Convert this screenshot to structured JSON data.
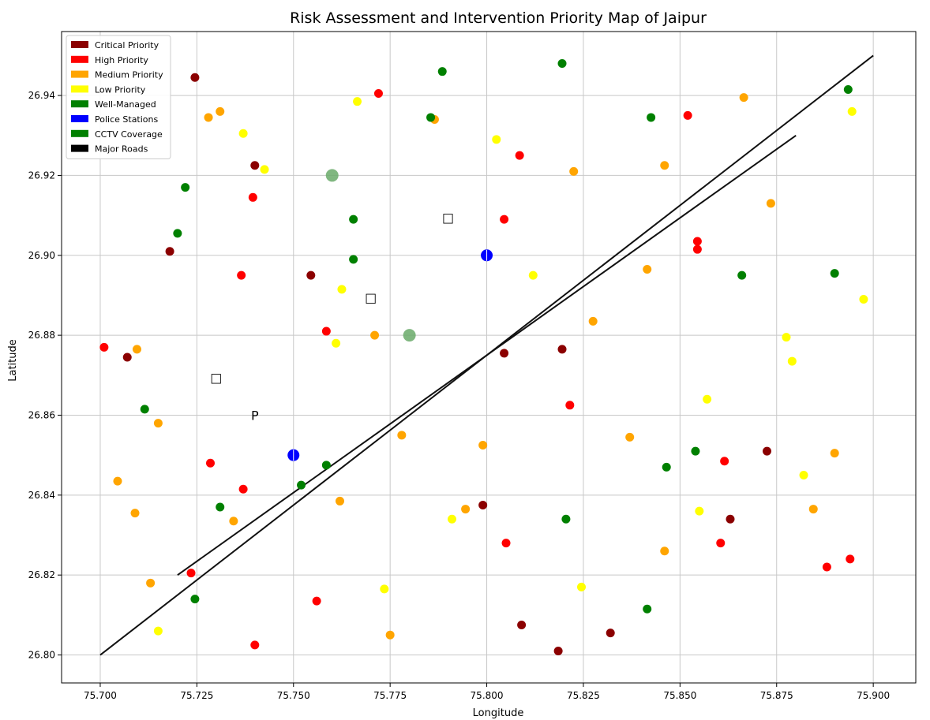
{
  "chart_data": {
    "type": "scatter",
    "title": "Risk Assessment and Intervention Priority Map of Jaipur",
    "xlabel": "Longitude",
    "ylabel": "Latitude",
    "xlim": [
      75.69,
      75.911
    ],
    "ylim": [
      26.793,
      26.956
    ],
    "xticks": [
      75.7,
      75.725,
      75.75,
      75.775,
      75.8,
      75.825,
      75.85,
      75.875,
      75.9
    ],
    "xtick_labels": [
      "75.700",
      "75.725",
      "75.750",
      "75.775",
      "75.800",
      "75.825",
      "75.850",
      "75.875",
      "75.900"
    ],
    "yticks": [
      26.8,
      26.82,
      26.84,
      26.86,
      26.88,
      26.9,
      26.92,
      26.94
    ],
    "ytick_labels": [
      "26.80",
      "26.82",
      "26.84",
      "26.86",
      "26.88",
      "26.90",
      "26.92",
      "26.94"
    ],
    "grid": true,
    "legend_position": "upper-left",
    "legend": [
      {
        "label": "Critical Priority",
        "color": "#8b0000"
      },
      {
        "label": "High Priority",
        "color": "#ff0000"
      },
      {
        "label": "Medium Priority",
        "color": "#ffa500"
      },
      {
        "label": "Low Priority",
        "color": "#ffff00"
      },
      {
        "label": "Well-Managed",
        "color": "#008000"
      },
      {
        "label": "Police Stations",
        "color": "#0000ff"
      },
      {
        "label": "CCTV Coverage",
        "color": "#008000"
      },
      {
        "label": "Major Roads",
        "color": "#000000"
      }
    ],
    "series": [
      {
        "category": "critical",
        "color": "#8b0000",
        "points": [
          [
            75.7245,
            26.9445
          ],
          [
            75.74,
            26.9225
          ],
          [
            75.718,
            26.901
          ],
          [
            75.7545,
            26.895
          ],
          [
            75.707,
            26.8745
          ],
          [
            75.8045,
            26.8755
          ],
          [
            75.8195,
            26.8765
          ],
          [
            75.8725,
            26.851
          ],
          [
            75.799,
            26.8375
          ],
          [
            75.863,
            26.834
          ],
          [
            75.809,
            26.8075
          ],
          [
            75.832,
            26.8055
          ],
          [
            75.8185,
            26.801
          ]
        ]
      },
      {
        "category": "high",
        "color": "#ff0000",
        "points": [
          [
            75.772,
            26.9405
          ],
          [
            75.852,
            26.935
          ],
          [
            75.8085,
            26.925
          ],
          [
            75.7395,
            26.9145
          ],
          [
            75.8045,
            26.909
          ],
          [
            75.8545,
            26.9035
          ],
          [
            75.8545,
            26.9015
          ],
          [
            75.7365,
            26.895
          ],
          [
            75.701,
            26.877
          ],
          [
            75.7585,
            26.881
          ],
          [
            75.8215,
            26.8625
          ],
          [
            75.7285,
            26.848
          ],
          [
            75.737,
            26.8415
          ],
          [
            75.8615,
            26.8485
          ],
          [
            75.805,
            26.828
          ],
          [
            75.8605,
            26.828
          ],
          [
            75.7235,
            26.8205
          ],
          [
            75.888,
            26.822
          ],
          [
            75.894,
            26.824
          ],
          [
            75.756,
            26.8135
          ],
          [
            75.74,
            26.8025
          ]
        ]
      },
      {
        "category": "medium",
        "color": "#ffa500",
        "points": [
          [
            75.8665,
            26.9395
          ],
          [
            75.731,
            26.936
          ],
          [
            75.728,
            26.9345
          ],
          [
            75.7865,
            26.934
          ],
          [
            75.8225,
            26.921
          ],
          [
            75.846,
            26.9225
          ],
          [
            75.8735,
            26.913
          ],
          [
            75.8415,
            26.8965
          ],
          [
            75.8275,
            26.8835
          ],
          [
            75.771,
            26.88
          ],
          [
            75.7095,
            26.8765
          ],
          [
            75.715,
            26.858
          ],
          [
            75.778,
            26.855
          ],
          [
            75.837,
            26.8545
          ],
          [
            75.799,
            26.8525
          ],
          [
            75.89,
            26.8505
          ],
          [
            75.7045,
            26.8435
          ],
          [
            75.762,
            26.8385
          ],
          [
            75.7945,
            26.8365
          ],
          [
            75.7345,
            26.8335
          ],
          [
            75.709,
            26.8355
          ],
          [
            75.8845,
            26.8365
          ],
          [
            75.846,
            26.826
          ],
          [
            75.713,
            26.818
          ],
          [
            75.775,
            26.805
          ]
        ]
      },
      {
        "category": "low",
        "color": "#ffff00",
        "points": [
          [
            75.7665,
            26.9385
          ],
          [
            75.8945,
            26.936
          ],
          [
            75.737,
            26.9305
          ],
          [
            75.8025,
            26.929
          ],
          [
            75.7425,
            26.9215
          ],
          [
            75.7625,
            26.8915
          ],
          [
            75.812,
            26.895
          ],
          [
            75.8975,
            26.889
          ],
          [
            75.761,
            26.878
          ],
          [
            75.8775,
            26.8795
          ],
          [
            75.879,
            26.8735
          ],
          [
            75.857,
            26.864
          ],
          [
            75.882,
            26.845
          ],
          [
            75.855,
            26.836
          ],
          [
            75.791,
            26.834
          ],
          [
            75.7735,
            26.8165
          ],
          [
            75.8245,
            26.817
          ],
          [
            75.715,
            26.806
          ]
        ]
      },
      {
        "category": "well-managed",
        "color": "#008000",
        "points": [
          [
            75.7885,
            26.946
          ],
          [
            75.8195,
            26.948
          ],
          [
            75.8935,
            26.9415
          ],
          [
            75.7855,
            26.9345
          ],
          [
            75.8425,
            26.9345
          ],
          [
            75.722,
            26.917
          ],
          [
            75.72,
            26.9055
          ],
          [
            75.7655,
            26.909
          ],
          [
            75.7655,
            26.899
          ],
          [
            75.866,
            26.895
          ],
          [
            75.89,
            26.8955
          ],
          [
            75.7115,
            26.8615
          ],
          [
            75.854,
            26.851
          ],
          [
            75.8465,
            26.847
          ],
          [
            75.7585,
            26.8475
          ],
          [
            75.752,
            26.8425
          ],
          [
            75.731,
            26.837
          ],
          [
            75.8205,
            26.834
          ],
          [
            75.7245,
            26.814
          ],
          [
            75.8415,
            26.8115
          ]
        ]
      },
      {
        "category": "police",
        "color": "#0000ff",
        "points": [
          [
            75.75,
            26.85
          ],
          [
            75.8,
            26.9
          ]
        ]
      },
      {
        "category": "cctv",
        "color": "#6aaa6a",
        "points": [
          [
            75.76,
            26.92
          ],
          [
            75.78,
            26.88
          ]
        ]
      }
    ],
    "roads": [
      [
        [
          75.7,
          26.8
        ],
        [
          75.9,
          26.95
        ]
      ],
      [
        [
          75.72,
          26.82
        ],
        [
          75.88,
          26.93
        ]
      ]
    ],
    "annotations": [
      {
        "text": "P",
        "x": 75.74,
        "y": 26.86
      },
      {
        "text": "□",
        "x": 75.73,
        "y": 26.8695
      },
      {
        "text": "□",
        "x": 75.77,
        "y": 26.8895
      },
      {
        "text": "□",
        "x": 75.79,
        "y": 26.9095
      }
    ]
  }
}
